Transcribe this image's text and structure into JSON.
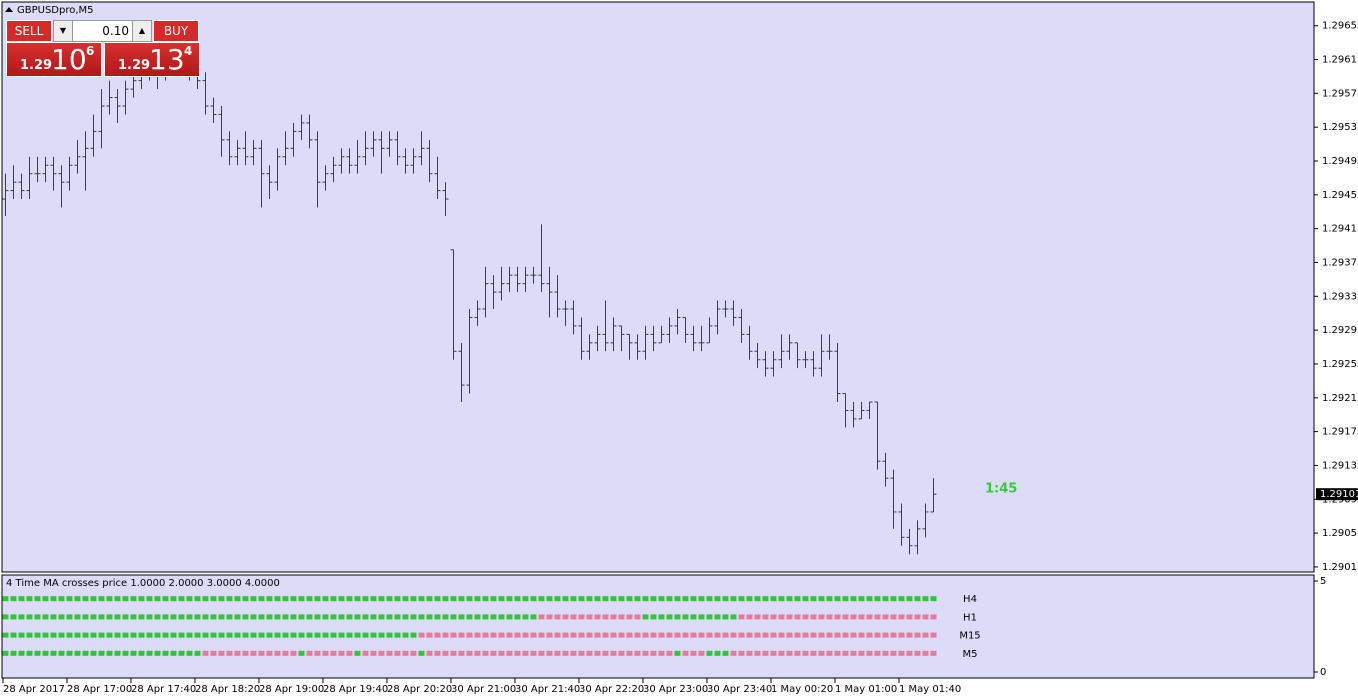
{
  "window_title": "GBPUSDpro,M5",
  "trade_panel": {
    "sell_label": "SELL",
    "buy_label": "BUY",
    "lot": "0.10",
    "bid": {
      "big": "1.29",
      "main": "10",
      "small": "6"
    },
    "ask": {
      "big": "1.29",
      "main": "13",
      "small": "4"
    }
  },
  "timer": "1:45",
  "chart_data": {
    "type": "ohlc",
    "color": "#2e4a2e",
    "ylim": [
      1.29009,
      1.29683
    ],
    "yticks": [
      1.29655,
      1.29615,
      1.29575,
      1.29535,
      1.29495,
      1.29455,
      1.29415,
      1.29375,
      1.29335,
      1.29295,
      1.29255,
      1.29215,
      1.29175,
      1.29135,
      1.29095,
      1.29055,
      1.29015
    ],
    "current_price": 1.29101,
    "xlabels": [
      "28 Apr 2017",
      "28 Apr 17:00",
      "28 Apr 17:40",
      "28 Apr 18:20",
      "28 Apr 19:00",
      "28 Apr 19:40",
      "28 Apr 20:20",
      "30 Apr 21:00",
      "30 Apr 21:40",
      "30 Apr 22:20",
      "30 Apr 23:00",
      "30 Apr 23:40",
      "1 May 00:20",
      "1 May 01:00",
      "1 May 01:40"
    ],
    "open": [
      1.2945,
      1.2946,
      1.2947,
      1.2946,
      1.2948,
      1.2948,
      1.2949,
      1.2948,
      1.2947,
      1.2949,
      1.295,
      1.2951,
      1.2953,
      1.2956,
      1.2957,
      1.2956,
      1.2958,
      1.2959,
      1.296,
      1.2961,
      1.296,
      1.2961,
      1.2962,
      1.2961,
      1.296,
      1.2959,
      1.2956,
      1.2955,
      1.2952,
      1.295,
      1.2951,
      1.295,
      1.2951,
      1.2948,
      1.2947,
      1.295,
      1.2951,
      1.2953,
      1.2954,
      1.2952,
      1.2947,
      1.2948,
      1.2949,
      1.295,
      1.2949,
      1.295,
      1.2951,
      1.2952,
      1.2951,
      1.2952,
      1.295,
      1.2949,
      1.295,
      1.2951,
      1.2948,
      1.2946,
      1.2939,
      1.2927,
      1.2923,
      1.2931,
      1.2932,
      1.2935,
      1.2934,
      1.2935,
      1.2936,
      1.2935,
      1.2936,
      1.2936,
      1.2935,
      1.2934,
      1.2932,
      1.2932,
      1.293,
      1.2927,
      1.2928,
      1.2929,
      1.2928,
      1.293,
      1.2929,
      1.2928,
      1.2927,
      1.2929,
      1.2928,
      1.2929,
      1.293,
      1.2931,
      1.2929,
      1.2928,
      1.2928,
      1.293,
      1.2932,
      1.2932,
      1.2931,
      1.2929,
      1.2927,
      1.2926,
      1.2925,
      1.2926,
      1.2927,
      1.2928,
      1.2926,
      1.2926,
      1.2925,
      1.2927,
      1.2927,
      1.2922,
      1.292,
      1.2919,
      1.292,
      1.2921,
      1.2914,
      1.2912,
      1.2908,
      1.2905,
      1.2904,
      1.2906,
      1.2908
    ],
    "high": [
      1.2948,
      1.2949,
      1.2948,
      1.295,
      1.295,
      1.295,
      1.295,
      1.2949,
      1.295,
      1.2952,
      1.2953,
      1.2955,
      1.2958,
      1.2959,
      1.2958,
      1.2959,
      1.2961,
      1.2962,
      1.2963,
      1.2962,
      1.2963,
      1.2964,
      1.2963,
      1.2962,
      1.2961,
      1.296,
      1.2957,
      1.2956,
      1.2953,
      1.2952,
      1.2953,
      1.2952,
      1.2952,
      1.2949,
      1.2951,
      1.2953,
      1.2954,
      1.2955,
      1.2955,
      1.2953,
      1.2949,
      1.295,
      1.2951,
      1.2951,
      1.2952,
      1.2953,
      1.2953,
      1.2953,
      1.2953,
      1.2953,
      1.2951,
      1.2951,
      1.2953,
      1.2952,
      1.295,
      1.2947,
      1.2939,
      1.2928,
      1.2932,
      1.2933,
      1.2937,
      1.2936,
      1.2937,
      1.2937,
      1.2937,
      1.2937,
      1.2937,
      1.2942,
      1.2937,
      1.2936,
      1.2933,
      1.2933,
      1.2931,
      1.2929,
      1.293,
      1.2933,
      1.2931,
      1.293,
      1.2929,
      1.2929,
      1.293,
      1.293,
      1.293,
      1.2931,
      1.2932,
      1.2931,
      1.293,
      1.293,
      1.2931,
      1.2933,
      1.2933,
      1.2933,
      1.2932,
      1.293,
      1.2928,
      1.2927,
      1.2927,
      1.2929,
      1.2929,
      1.2928,
      1.2927,
      1.2927,
      1.2929,
      1.2929,
      1.2928,
      1.2922,
      1.2921,
      1.2921,
      1.2921,
      1.2921,
      1.2915,
      1.2913,
      1.2909,
      1.2906,
      1.2907,
      1.2909,
      1.2912
    ],
    "low": [
      1.2943,
      1.2945,
      1.2945,
      1.2945,
      1.2947,
      1.2947,
      1.2946,
      1.2944,
      1.2946,
      1.2948,
      1.2946,
      1.295,
      1.2951,
      1.2955,
      1.2954,
      1.2955,
      1.2957,
      1.2958,
      1.2959,
      1.2958,
      1.2959,
      1.296,
      1.296,
      1.2959,
      1.2958,
      1.2955,
      1.2954,
      1.295,
      1.2949,
      1.2949,
      1.2949,
      1.2949,
      1.2944,
      1.2945,
      1.2946,
      1.2949,
      1.295,
      1.2952,
      1.2951,
      1.2944,
      1.2946,
      1.2947,
      1.2948,
      1.2948,
      1.2948,
      1.2949,
      1.295,
      1.2948,
      1.295,
      1.2949,
      1.2948,
      1.2948,
      1.2949,
      1.2947,
      1.2945,
      1.2943,
      1.2926,
      1.2921,
      1.2922,
      1.293,
      1.2931,
      1.2932,
      1.2933,
      1.2934,
      1.2934,
      1.2934,
      1.2935,
      1.2934,
      1.2931,
      1.2931,
      1.293,
      1.2929,
      1.2926,
      1.2926,
      1.2927,
      1.2927,
      1.2927,
      1.2927,
      1.2926,
      1.2926,
      1.2926,
      1.2927,
      1.2928,
      1.2928,
      1.2929,
      1.2928,
      1.2927,
      1.2927,
      1.2928,
      1.2929,
      1.2931,
      1.293,
      1.2928,
      1.2926,
      1.2925,
      1.2924,
      1.2924,
      1.2925,
      1.2926,
      1.2925,
      1.2925,
      1.2924,
      1.2924,
      1.2926,
      1.2921,
      1.2918,
      1.2918,
      1.2919,
      1.2919,
      1.2913,
      1.2911,
      1.2906,
      1.2904,
      1.2903,
      1.2903,
      1.2905,
      1.2908
    ],
    "close": [
      1.2946,
      1.2947,
      1.2946,
      1.2948,
      1.2948,
      1.2949,
      1.2948,
      1.2947,
      1.2949,
      1.295,
      1.2951,
      1.2953,
      1.2956,
      1.2957,
      1.2956,
      1.2958,
      1.2959,
      1.296,
      1.2961,
      1.296,
      1.2961,
      1.2962,
      1.2961,
      1.296,
      1.2959,
      1.2956,
      1.2955,
      1.2952,
      1.295,
      1.2951,
      1.295,
      1.2951,
      1.2948,
      1.2947,
      1.295,
      1.2951,
      1.2953,
      1.2954,
      1.2952,
      1.2947,
      1.2948,
      1.2949,
      1.295,
      1.2949,
      1.295,
      1.2951,
      1.2952,
      1.2951,
      1.2952,
      1.295,
      1.2949,
      1.295,
      1.2951,
      1.2948,
      1.2946,
      1.2945,
      1.2927,
      1.2923,
      1.2931,
      1.2932,
      1.2935,
      1.2934,
      1.2935,
      1.2936,
      1.2935,
      1.2936,
      1.2936,
      1.2935,
      1.2934,
      1.2932,
      1.2932,
      1.293,
      1.2927,
      1.2928,
      1.2929,
      1.2928,
      1.293,
      1.2929,
      1.2928,
      1.2927,
      1.2929,
      1.2928,
      1.2929,
      1.293,
      1.2931,
      1.2929,
      1.2928,
      1.2928,
      1.293,
      1.2932,
      1.2932,
      1.2931,
      1.2929,
      1.2927,
      1.2926,
      1.2925,
      1.2926,
      1.2927,
      1.2928,
      1.2926,
      1.2926,
      1.2925,
      1.2927,
      1.2927,
      1.2922,
      1.292,
      1.2919,
      1.292,
      1.2921,
      1.2914,
      1.2912,
      1.2908,
      1.2905,
      1.2904,
      1.2906,
      1.2908,
      1.29101
    ]
  },
  "indicator": {
    "title": "4 Time MA crosses price 1.0000 2.0000 3.0000 4.0000",
    "ylim": [
      0,
      5
    ],
    "yticks": [
      5,
      0
    ],
    "rows": [
      {
        "name": "H4",
        "level": 4,
        "segments": [
          {
            "from": 0,
            "to": 116,
            "color": "#33c33a"
          }
        ]
      },
      {
        "name": "H1",
        "level": 3,
        "segments": [
          {
            "from": 0,
            "to": 66,
            "color": "#33c33a"
          },
          {
            "from": 67,
            "to": 79,
            "color": "#e67a9c"
          },
          {
            "from": 80,
            "to": 91,
            "color": "#33c33a"
          },
          {
            "from": 92,
            "to": 116,
            "color": "#e67a9c"
          }
        ]
      },
      {
        "name": "M15",
        "level": 2,
        "segments": [
          {
            "from": 0,
            "to": 51,
            "color": "#33c33a"
          },
          {
            "from": 52,
            "to": 116,
            "color": "#e67a9c"
          }
        ]
      },
      {
        "name": "M5",
        "level": 1,
        "segments": [
          {
            "from": 0,
            "to": 24,
            "color": "#33c33a"
          },
          {
            "from": 25,
            "to": 36,
            "color": "#e67a9c"
          },
          {
            "from": 37,
            "to": 37,
            "color": "#33c33a"
          },
          {
            "from": 38,
            "to": 43,
            "color": "#e67a9c"
          },
          {
            "from": 44,
            "to": 44,
            "color": "#33c33a"
          },
          {
            "from": 45,
            "to": 51,
            "color": "#e67a9c"
          },
          {
            "from": 52,
            "to": 52,
            "color": "#33c33a"
          },
          {
            "from": 53,
            "to": 83,
            "color": "#e67a9c"
          },
          {
            "from": 84,
            "to": 84,
            "color": "#33c33a"
          },
          {
            "from": 85,
            "to": 87,
            "color": "#e67a9c"
          },
          {
            "from": 88,
            "to": 90,
            "color": "#33c33a"
          },
          {
            "from": 91,
            "to": 116,
            "color": "#e67a9c"
          }
        ]
      }
    ]
  }
}
